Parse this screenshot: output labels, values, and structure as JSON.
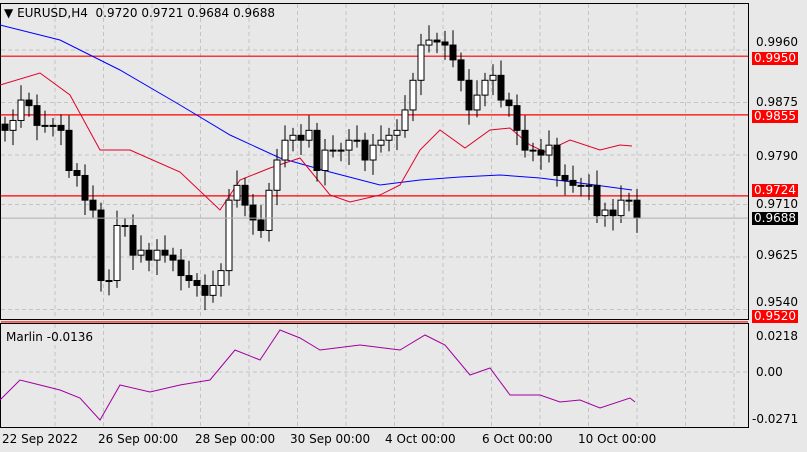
{
  "header": {
    "symbol": "EURUSD,H4",
    "open": "0.9720",
    "high": "0.9721",
    "low": "0.9684",
    "close": "0.9688"
  },
  "indicator": {
    "name": "Marlin",
    "value": "-0.0136",
    "levels": [
      "0.0218",
      "0.00",
      "-0.0271"
    ]
  },
  "price_axis": [
    "0.9960",
    "0.9875",
    "0.9790",
    "0.9710",
    "0.9625",
    "0.9540"
  ],
  "horizontal_lines": [
    {
      "label": "0.9950",
      "price": 0.995
    },
    {
      "label": "0.9855",
      "price": 0.9855
    },
    {
      "label": "0.9724",
      "price": 0.9724
    },
    {
      "label": "0.9520",
      "price": 0.952
    }
  ],
  "current_price": "0.9688",
  "time_axis": [
    "22 Sep 2022",
    "26 Sep 00:00",
    "28 Sep 00:00",
    "30 Sep 00:00",
    "4 Oct 00:00",
    "6 Oct 00:00",
    "10 Oct 00:00"
  ],
  "colors": {
    "line": "#ff0000",
    "ma": "#0000ff",
    "envelope": "#e0002a",
    "marlin": "#a000a0"
  },
  "closes": [
    0.983,
    0.9846,
    0.9879,
    0.987,
    0.9838,
    0.9838,
    0.9838,
    0.983,
    0.9765,
    0.9757,
    0.9717,
    0.9701,
    0.9587,
    0.9587,
    0.9676,
    0.9676,
    0.9628,
    0.9636,
    0.962,
    0.9636,
    0.9628,
    0.962,
    0.9595,
    0.9587,
    0.9579,
    0.9563,
    0.9579,
    0.9603,
    0.9717,
    0.9741,
    0.9709,
    0.9685,
    0.9668,
    0.9733,
    0.9782,
    0.9814,
    0.9822,
    0.9814,
    0.983,
    0.9765,
    0.9798,
    0.9798,
    0.9798,
    0.9814,
    0.9814,
    0.9782,
    0.9806,
    0.9814,
    0.9822,
    0.983,
    0.9863,
    0.9911,
    0.9968,
    0.9976,
    0.9973,
    0.9968,
    0.9944,
    0.9911,
    0.9863,
    0.9887,
    0.9911,
    0.9919,
    0.9879,
    0.987,
    0.983,
    0.9798,
    0.9798,
    0.979,
    0.9806,
    0.9757,
    0.9749,
    0.9741,
    0.9741,
    0.9741,
    0.9692,
    0.9701,
    0.9692,
    0.9717,
    0.9717,
    0.9688
  ]
}
